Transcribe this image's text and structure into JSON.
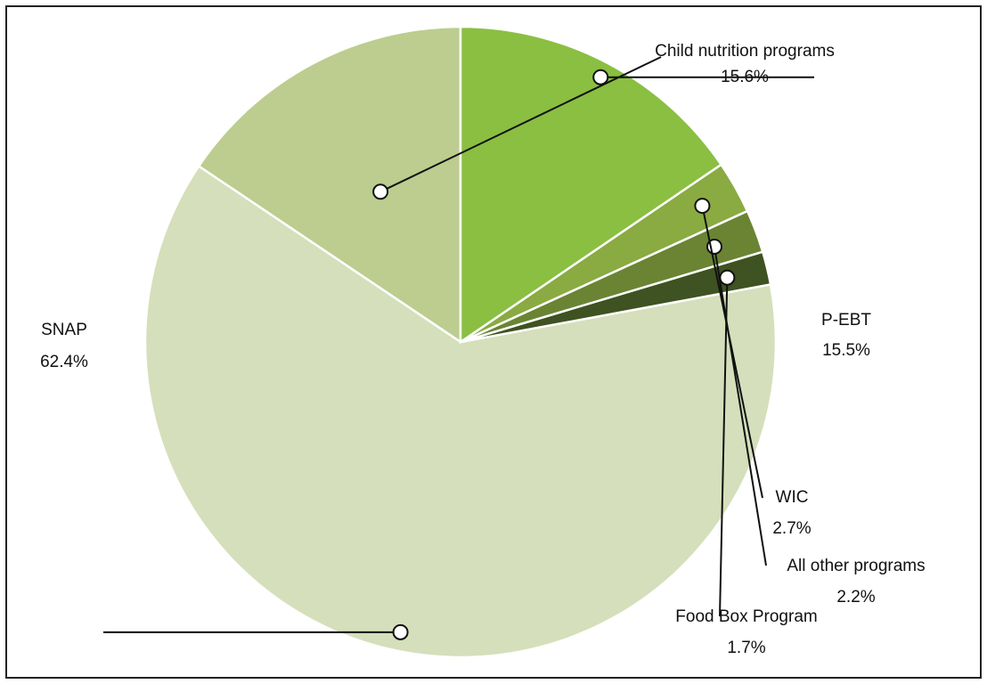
{
  "chart_data": {
    "type": "pie",
    "title": "",
    "start_angle_deg": 0,
    "direction": "counterclockwise",
    "categories": [
      "Child nutrition programs",
      "SNAP",
      "Food Box Program",
      "All other programs",
      "WIC",
      "P-EBT"
    ],
    "values": [
      15.6,
      62.4,
      1.7,
      2.2,
      2.7,
      15.5
    ],
    "value_labels": [
      "15.6%",
      "62.4%",
      "1.7%",
      "2.2%",
      "2.7%",
      "15.5%"
    ],
    "colors": [
      "#bccd8f",
      "#d5dfbb",
      "#3f5221",
      "#6a8434",
      "#8aaa42",
      "#8abf42"
    ],
    "legend": "none",
    "label_style": "callout-lines"
  }
}
